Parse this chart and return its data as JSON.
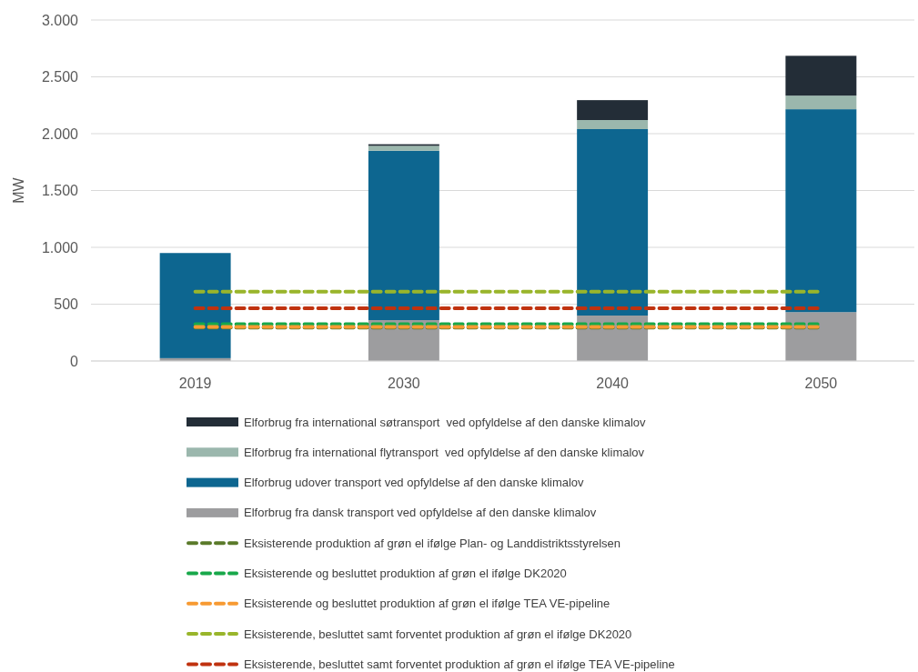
{
  "chart_data": {
    "type": "bar",
    "stacked": true,
    "ylabel": "MW",
    "categories": [
      "2019",
      "2030",
      "2040",
      "2050"
    ],
    "series": [
      {
        "name": "Elforbrug fra dansk transport ved opfyldelse af den danske klimalov",
        "color": "#9d9d9f",
        "values": [
          25,
          360,
          400,
          430
        ]
      },
      {
        "name": "Elforbrug udover transport ved opfyldelse af den danske klimalov",
        "color": "#0d6690",
        "values": [
          925,
          1490,
          1640,
          1785
        ]
      },
      {
        "name": "Elforbrug fra international flytransport  ved opfyldelse af den danske klimalov",
        "color": "#9bb7ad",
        "values": [
          0,
          43,
          80,
          120
        ]
      },
      {
        "name": "Elforbrug fra international søtransport  ved opfyldelse af den danske klimalov",
        "color": "#232d37",
        "values": [
          0,
          14,
          175,
          350
        ]
      },
      {
        "name": "Eksisterende produktion af grøn el ifølge Plan- og Landdistriktsstyrelsen",
        "type": "line",
        "line_style": "dashed",
        "color": "#5a7a2a",
        "values": [
          295,
          295,
          295,
          295
        ]
      },
      {
        "name": "Eksisterende og besluttet produktion af grøn el ifølge DK2020",
        "type": "line",
        "line_style": "dashed",
        "color": "#18a84a",
        "values": [
          325,
          325,
          325,
          325
        ]
      },
      {
        "name": "Eksisterende og besluttet produktion af grøn el ifølge TEA VE-pipeline",
        "type": "line",
        "line_style": "dashed",
        "color": "#f79a32",
        "values": [
          300,
          300,
          300,
          300
        ]
      },
      {
        "name": "Eksisterende, besluttet samt forventet produktion af grøn el ifølge DK2020",
        "type": "line",
        "line_style": "dashed",
        "color": "#99b52b",
        "values": [
          610,
          610,
          610,
          610
        ]
      },
      {
        "name": "Eksisterende, besluttet samt forventet produktion af grøn el ifølge TEA VE-pipeline",
        "type": "line",
        "line_style": "dashed",
        "color": "#c0320f",
        "values": [
          465,
          465,
          465,
          465
        ]
      }
    ],
    "ylim": [
      0,
      3000
    ],
    "yticks": [
      0,
      500,
      {
        "value": 1000,
        "label": "1.000"
      },
      {
        "value": 1500,
        "label": "1.500"
      },
      {
        "value": 2000,
        "label": "2.000"
      },
      {
        "value": 2500,
        "label": "2.500"
      },
      {
        "value": 3000,
        "label": "3.000"
      }
    ],
    "grid": "y",
    "legend": "bottom"
  }
}
